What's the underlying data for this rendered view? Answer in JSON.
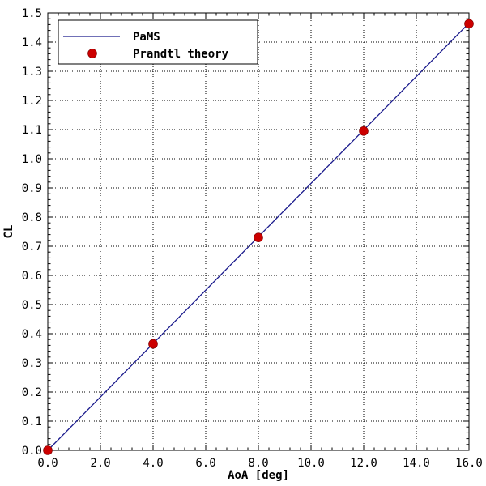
{
  "chart_data": {
    "type": "line",
    "title": "",
    "xlabel": "AoA [deg]",
    "ylabel": "CL",
    "xlim": [
      0,
      16
    ],
    "ylim": [
      0,
      1.5
    ],
    "x_ticks": [
      "0.0",
      "2.0",
      "4.0",
      "6.0",
      "8.0",
      "10.0",
      "12.0",
      "14.0",
      "16.0"
    ],
    "y_ticks": [
      "0.0",
      "0.1",
      "0.2",
      "0.3",
      "0.4",
      "0.5",
      "0.6",
      "0.7",
      "0.8",
      "0.9",
      "1.0",
      "1.1",
      "1.2",
      "1.3",
      "1.4",
      "1.5"
    ],
    "grid": true,
    "legend_position": "top-left",
    "series": [
      {
        "name": "PaMS",
        "type": "line",
        "color": "#1a1a8c",
        "points": [
          [
            0,
            0
          ],
          [
            16,
            1.465
          ]
        ]
      },
      {
        "name": "Prandtl theory",
        "type": "scatter",
        "color": "#cc0000",
        "points": [
          [
            0,
            0
          ],
          [
            4,
            0.365
          ],
          [
            8,
            0.73
          ],
          [
            12,
            1.095
          ],
          [
            16,
            1.463
          ]
        ]
      }
    ]
  }
}
